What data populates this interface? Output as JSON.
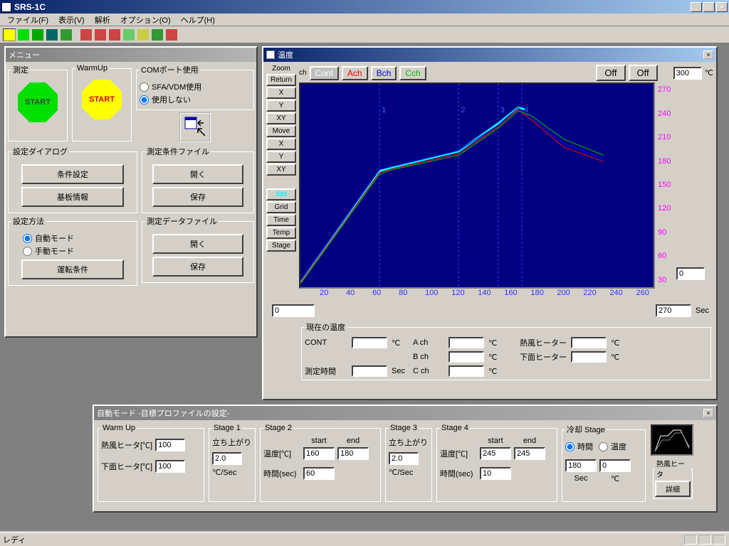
{
  "window": {
    "title": "SRS-1C"
  },
  "menu": {
    "file": "ファイル(F)",
    "view": "表示(V)",
    "analysis": "解析",
    "option": "オプション(O)",
    "help": "ヘルプ(H)"
  },
  "status": {
    "text": "レディ"
  },
  "menuPanel": {
    "title": "メニュー",
    "measure": {
      "label": "測定",
      "start": "START"
    },
    "warmup": {
      "label": "WarmUp",
      "start": "START"
    },
    "comport": {
      "label": "COMポート使用",
      "opt1": "SFA/VDM使用",
      "opt2": "使用しない"
    },
    "dialog": {
      "label": "設定ダイアログ",
      "cond": "条件設定",
      "board": "基板情報"
    },
    "condfile": {
      "label": "測定条件ファイル",
      "open": "開く",
      "save": "保存"
    },
    "method": {
      "label": "設定方法",
      "auto": "自動モード",
      "manual": "手動モード",
      "run": "運転条件"
    },
    "datafile": {
      "label": "測定データファイル",
      "open": "開く",
      "save": "保存"
    }
  },
  "tempPanel": {
    "title": "温度",
    "zoom": "Zoom",
    "ch": "ch",
    "cont": "Cont",
    "ach": "Ach",
    "bch": "Bch",
    "cch": "Cch",
    "offA": "Off",
    "offB": "Off",
    "yinput": "300",
    "yunit": "℃",
    "btns": [
      "Return",
      "X",
      "Y",
      "XY",
      "Move",
      "X",
      "Y",
      "XY"
    ],
    "btns2": [
      "Std",
      "Grid",
      "Time",
      "Temp",
      "Stage"
    ],
    "xmin": "0",
    "xmax": "270",
    "sec": "Sec",
    "ymaxInput": "0",
    "chart": {
      "bg": "#000080",
      "xticks": [
        20,
        40,
        60,
        80,
        100,
        120,
        140,
        160,
        180,
        200,
        220,
        240,
        260
      ],
      "yticks": [
        30,
        60,
        90,
        120,
        150,
        180,
        210,
        240,
        270
      ],
      "ytick_color": "#ff00ff",
      "xtick_color": "#3030ff",
      "stage_markers": [
        60,
        120,
        150,
        168
      ],
      "marker_labels": [
        "1",
        "2",
        "3",
        "4"
      ],
      "series": [
        {
          "color": "#00ffff",
          "width": 3,
          "pts": [
            [
              0,
              30
            ],
            [
              60,
              170
            ],
            [
              70,
              175
            ],
            [
              120,
              195
            ],
            [
              150,
              230
            ],
            [
              165,
              250
            ],
            [
              170,
              248
            ]
          ]
        },
        {
          "color": "#ff0000",
          "width": 1,
          "pts": [
            [
              0,
              30
            ],
            [
              60,
              168
            ],
            [
              70,
              173
            ],
            [
              120,
              192
            ],
            [
              150,
              226
            ],
            [
              165,
              248
            ],
            [
              175,
              235
            ],
            [
              200,
              200
            ],
            [
              230,
              182
            ]
          ]
        },
        {
          "color": "#0000ff",
          "width": 1,
          "pts": [
            [
              0,
              32
            ],
            [
              60,
              172
            ],
            [
              70,
              176
            ],
            [
              120,
              196
            ],
            [
              150,
              228
            ],
            [
              165,
              250
            ],
            [
              175,
              238
            ],
            [
              200,
              205
            ],
            [
              230,
              185
            ]
          ]
        },
        {
          "color": "#00c000",
          "width": 1,
          "pts": [
            [
              0,
              28
            ],
            [
              60,
              166
            ],
            [
              70,
              172
            ],
            [
              120,
              190
            ],
            [
              150,
              224
            ],
            [
              165,
              246
            ],
            [
              175,
              240
            ],
            [
              200,
              210
            ],
            [
              230,
              190
            ]
          ]
        }
      ]
    },
    "curtemp": {
      "label": "現在の温度",
      "cont": "CONT",
      "ach": "A ch",
      "bch": "B ch",
      "cch": "C ch",
      "meastime": "測定時間",
      "hotair": "熱風ヒーター",
      "bottom": "下面ヒーター",
      "degC": "℃",
      "sec": "Sec"
    }
  },
  "profilePanel": {
    "title": "自動モード  -目標プロファイルの設定-",
    "warmup": {
      "label": "Warm Up",
      "hotair": "熱風ヒータ[℃]",
      "hotairV": "100",
      "bottom": "下面ヒータ[℃]",
      "bottomV": "100"
    },
    "stage1": {
      "label": "Stage 1",
      "rise": "立ち上がり",
      "value": "2.0",
      "unit": "℃/Sec"
    },
    "stage2": {
      "label": "Stage 2",
      "start": "start",
      "end": "end",
      "temp": "温度[℃]",
      "tempS": "160",
      "tempE": "180",
      "time": "時間(sec)",
      "timeV": "60"
    },
    "stage3": {
      "label": "Stage 3",
      "rise": "立ち上がり",
      "value": "2.0",
      "unit": "℃/Sec"
    },
    "stage4": {
      "label": "Stage 4",
      "start": "start",
      "end": "end",
      "temp": "温度[℃]",
      "tempS": "245",
      "tempE": "245",
      "time": "時間(sec)",
      "timeV": "10"
    },
    "cooling": {
      "label": "冷却 Stage",
      "opt1": "時間",
      "opt2": "温度",
      "v1": "180",
      "v2": "0",
      "u1": "Sec",
      "u2": "℃"
    },
    "heater": {
      "label": "熱風ヒータ",
      "detail": "詳細"
    }
  },
  "colors": {
    "start1_bg": "#00e000",
    "start1_fg": "#404040",
    "start1_border": "#008000",
    "start2_bg": "#ffff00",
    "start2_fg": "#d00000",
    "start2_border": "#b0b000",
    "std_btn": "#00ffff"
  }
}
